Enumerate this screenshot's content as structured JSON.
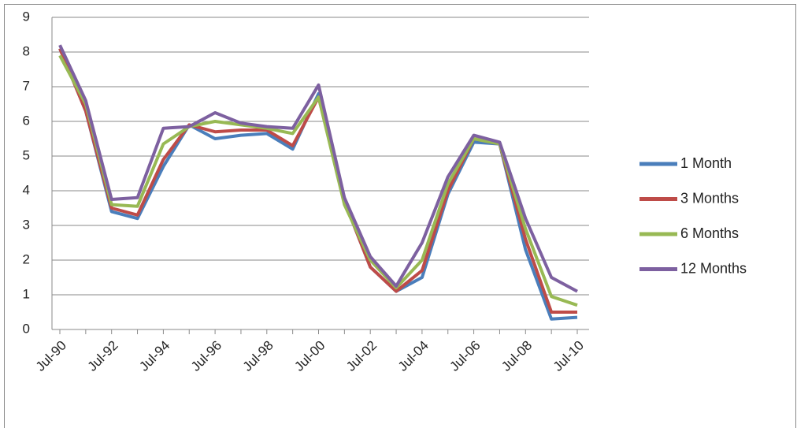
{
  "chart_data": {
    "type": "line",
    "categories": [
      "Jul-90",
      null,
      "Jul-92",
      null,
      "Jul-94",
      null,
      "Jul-96",
      null,
      "Jul-98",
      null,
      "Jul-00",
      null,
      "Jul-02",
      null,
      "Jul-04",
      null,
      "Jul-06",
      null,
      "Jul-08",
      null,
      "Jul-10"
    ],
    "series": [
      {
        "name": "1 Month",
        "color": "#4a7ebb",
        "values": [
          8.1,
          6.3,
          3.4,
          3.2,
          4.7,
          5.9,
          5.5,
          5.6,
          5.65,
          5.2,
          6.8,
          3.7,
          1.8,
          1.1,
          1.5,
          3.9,
          5.4,
          5.35,
          2.3,
          0.3,
          0.35
        ]
      },
      {
        "name": "3 Months",
        "color": "#be4b48",
        "values": [
          8.1,
          6.3,
          3.5,
          3.3,
          4.9,
          5.9,
          5.7,
          5.75,
          5.75,
          5.3,
          6.7,
          3.7,
          1.8,
          1.1,
          1.7,
          4.0,
          5.5,
          5.35,
          2.6,
          0.5,
          0.5
        ]
      },
      {
        "name": "6 Months",
        "color": "#98b954",
        "values": [
          7.9,
          6.5,
          3.6,
          3.55,
          5.35,
          5.85,
          6.0,
          5.9,
          5.8,
          5.65,
          6.7,
          3.6,
          2.0,
          1.2,
          2.0,
          4.2,
          5.5,
          5.35,
          2.9,
          0.95,
          0.7
        ]
      },
      {
        "name": "12 Months",
        "color": "#7d60a0",
        "values": [
          8.2,
          6.6,
          3.75,
          3.8,
          5.8,
          5.85,
          6.25,
          5.95,
          5.85,
          5.8,
          7.05,
          3.8,
          2.1,
          1.25,
          2.5,
          4.4,
          5.6,
          5.4,
          3.2,
          1.5,
          1.1
        ]
      }
    ],
    "ylim": [
      0,
      9
    ],
    "yticks": [
      0,
      1,
      2,
      3,
      4,
      5,
      6,
      7,
      8,
      9
    ],
    "grid": true,
    "legend": "right"
  }
}
